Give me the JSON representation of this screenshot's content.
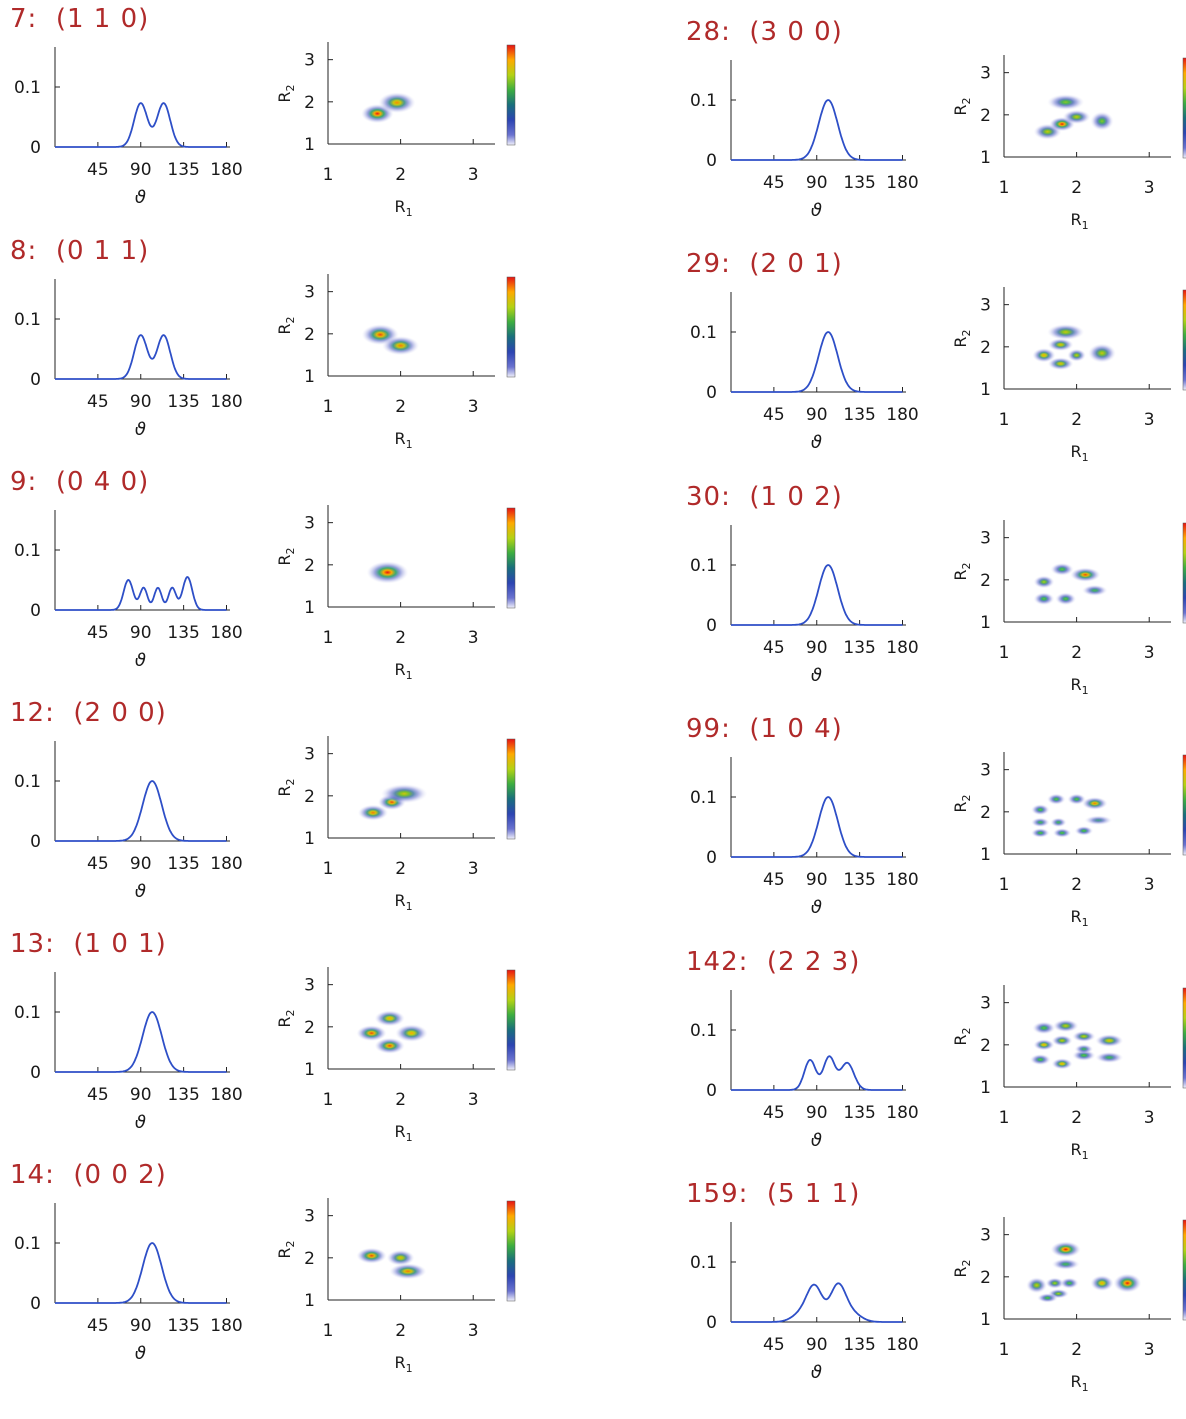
{
  "chart_data": [
    {
      "type": "line",
      "title": "7:  (1 1 0)",
      "xlabel": "ϑ",
      "xticks": [
        "45",
        "90",
        "135",
        "180"
      ],
      "yticks": [
        "0",
        "0.1"
      ],
      "peaks": [
        {
          "x": 90,
          "h": 0.073,
          "w": 7
        },
        {
          "x": 114,
          "h": 0.073,
          "w": 7
        }
      ],
      "map": {
        "xlabel": "R",
        "xlabel_sub": "1",
        "ylabel": "R",
        "ylabel_sub": "2",
        "xticks": [
          "1",
          "2",
          "3"
        ],
        "yticks": [
          "1",
          "2",
          "3"
        ],
        "blobs": [
          {
            "x": 1.68,
            "y": 1.72,
            "i": 1.0,
            "sx": 0.14,
            "sy": 0.12
          },
          {
            "x": 1.95,
            "y": 1.98,
            "i": 0.88,
            "sx": 0.16,
            "sy": 0.13
          }
        ]
      }
    },
    {
      "type": "line",
      "title": "8:  (0 1 1)",
      "xlabel": "ϑ",
      "xticks": [
        "45",
        "90",
        "135",
        "180"
      ],
      "yticks": [
        "0",
        "0.1"
      ],
      "peaks": [
        {
          "x": 90,
          "h": 0.073,
          "w": 7
        },
        {
          "x": 114,
          "h": 0.073,
          "w": 7
        }
      ],
      "map": {
        "xlabel": "R",
        "xlabel_sub": "1",
        "ylabel": "R",
        "ylabel_sub": "2",
        "xticks": [
          "1",
          "2",
          "3"
        ],
        "yticks": [
          "1",
          "2",
          "3"
        ],
        "blobs": [
          {
            "x": 1.72,
            "y": 1.98,
            "i": 0.95,
            "sx": 0.16,
            "sy": 0.13
          },
          {
            "x": 2.0,
            "y": 1.72,
            "i": 0.9,
            "sx": 0.16,
            "sy": 0.12
          }
        ]
      }
    },
    {
      "type": "line",
      "title": "9:  (0 4 0)",
      "xlabel": "ϑ",
      "xticks": [
        "45",
        "90",
        "135",
        "180"
      ],
      "yticks": [
        "0",
        "0.1"
      ],
      "peaks": [
        {
          "x": 77,
          "h": 0.05,
          "w": 5
        },
        {
          "x": 93,
          "h": 0.037,
          "w": 4
        },
        {
          "x": 108,
          "h": 0.037,
          "w": 4
        },
        {
          "x": 123,
          "h": 0.037,
          "w": 4
        },
        {
          "x": 139,
          "h": 0.055,
          "w": 5
        }
      ],
      "map": {
        "xlabel": "R",
        "xlabel_sub": "1",
        "ylabel": "R",
        "ylabel_sub": "2",
        "xticks": [
          "1",
          "2",
          "3"
        ],
        "yticks": [
          "1",
          "2",
          "3"
        ],
        "blobs": [
          {
            "x": 1.82,
            "y": 1.82,
            "i": 1.0,
            "sx": 0.18,
            "sy": 0.14
          }
        ]
      }
    },
    {
      "type": "line",
      "title": "12:  (2 0 0)",
      "xlabel": "ϑ",
      "xticks": [
        "45",
        "90",
        "135",
        "180"
      ],
      "yticks": [
        "0",
        "0.1"
      ],
      "peaks": [
        {
          "x": 102,
          "h": 0.1,
          "w": 10
        }
      ],
      "map": {
        "xlabel": "R",
        "xlabel_sub": "1",
        "ylabel": "R",
        "ylabel_sub": "2",
        "xticks": [
          "1",
          "2",
          "3"
        ],
        "yticks": [
          "1",
          "2",
          "3"
        ],
        "blobs": [
          {
            "x": 1.62,
            "y": 1.6,
            "i": 0.9,
            "sx": 0.13,
            "sy": 0.1
          },
          {
            "x": 1.88,
            "y": 1.85,
            "i": 0.95,
            "sx": 0.12,
            "sy": 0.1
          },
          {
            "x": 2.05,
            "y": 2.05,
            "i": 0.75,
            "sx": 0.2,
            "sy": 0.12
          }
        ]
      }
    },
    {
      "type": "line",
      "title": "13:  (1 0 1)",
      "xlabel": "ϑ",
      "xticks": [
        "45",
        "90",
        "135",
        "180"
      ],
      "yticks": [
        "0",
        "0.1"
      ],
      "peaks": [
        {
          "x": 102,
          "h": 0.1,
          "w": 10
        }
      ],
      "map": {
        "xlabel": "R",
        "xlabel_sub": "1",
        "ylabel": "R",
        "ylabel_sub": "2",
        "xticks": [
          "1",
          "2",
          "3"
        ],
        "yticks": [
          "1",
          "2",
          "3"
        ],
        "blobs": [
          {
            "x": 1.6,
            "y": 1.85,
            "i": 0.95,
            "sx": 0.13,
            "sy": 0.1
          },
          {
            "x": 1.85,
            "y": 2.2,
            "i": 0.85,
            "sx": 0.13,
            "sy": 0.1
          },
          {
            "x": 1.85,
            "y": 1.55,
            "i": 0.95,
            "sx": 0.13,
            "sy": 0.1
          },
          {
            "x": 2.15,
            "y": 1.85,
            "i": 0.85,
            "sx": 0.14,
            "sy": 0.11
          }
        ]
      }
    },
    {
      "type": "line",
      "title": "14:  (0 0 2)",
      "xlabel": "ϑ",
      "xticks": [
        "45",
        "90",
        "135",
        "180"
      ],
      "yticks": [
        "0",
        "0.1"
      ],
      "peaks": [
        {
          "x": 102,
          "h": 0.1,
          "w": 10
        }
      ],
      "map": {
        "xlabel": "R",
        "xlabel_sub": "1",
        "ylabel": "R",
        "ylabel_sub": "2",
        "xticks": [
          "1",
          "2",
          "3"
        ],
        "yticks": [
          "1",
          "2",
          "3"
        ],
        "blobs": [
          {
            "x": 1.6,
            "y": 2.05,
            "i": 0.95,
            "sx": 0.13,
            "sy": 0.1
          },
          {
            "x": 2.0,
            "y": 2.0,
            "i": 0.8,
            "sx": 0.12,
            "sy": 0.1
          },
          {
            "x": 2.1,
            "y": 1.68,
            "i": 0.9,
            "sx": 0.16,
            "sy": 0.1
          }
        ]
      }
    },
    {
      "type": "line",
      "title": "28:  (3 0 0)",
      "xlabel": "ϑ",
      "xticks": [
        "45",
        "90",
        "135",
        "180"
      ],
      "yticks": [
        "0",
        "0.1"
      ],
      "peaks": [
        {
          "x": 102,
          "h": 0.1,
          "w": 10
        }
      ],
      "map": {
        "xlabel": "R",
        "xlabel_sub": "1",
        "ylabel": "R",
        "ylabel_sub": "2",
        "xticks": [
          "1",
          "2",
          "3"
        ],
        "yticks": [
          "1",
          "2",
          "3"
        ],
        "blobs": [
          {
            "x": 1.6,
            "y": 1.6,
            "i": 0.75,
            "sx": 0.12,
            "sy": 0.1
          },
          {
            "x": 1.8,
            "y": 1.78,
            "i": 1.0,
            "sx": 0.11,
            "sy": 0.09
          },
          {
            "x": 2.0,
            "y": 1.95,
            "i": 0.75,
            "sx": 0.12,
            "sy": 0.09
          },
          {
            "x": 1.85,
            "y": 2.3,
            "i": 0.65,
            "sx": 0.16,
            "sy": 0.1
          },
          {
            "x": 2.35,
            "y": 1.85,
            "i": 0.65,
            "sx": 0.1,
            "sy": 0.12
          }
        ]
      }
    },
    {
      "type": "line",
      "title": "29:  (2 0 1)",
      "xlabel": "ϑ",
      "xticks": [
        "45",
        "90",
        "135",
        "180"
      ],
      "yticks": [
        "0",
        "0.1"
      ],
      "peaks": [
        {
          "x": 102,
          "h": 0.1,
          "w": 10
        }
      ],
      "map": {
        "xlabel": "R",
        "xlabel_sub": "1",
        "ylabel": "R",
        "ylabel_sub": "2",
        "xticks": [
          "1",
          "2",
          "3"
        ],
        "yticks": [
          "1",
          "2",
          "3"
        ],
        "blobs": [
          {
            "x": 1.55,
            "y": 1.8,
            "i": 0.85,
            "sx": 0.1,
            "sy": 0.09
          },
          {
            "x": 1.78,
            "y": 2.05,
            "i": 0.8,
            "sx": 0.11,
            "sy": 0.08
          },
          {
            "x": 1.78,
            "y": 1.6,
            "i": 0.8,
            "sx": 0.11,
            "sy": 0.08
          },
          {
            "x": 2.0,
            "y": 1.8,
            "i": 0.75,
            "sx": 0.08,
            "sy": 0.08
          },
          {
            "x": 1.85,
            "y": 2.35,
            "i": 0.75,
            "sx": 0.16,
            "sy": 0.1
          },
          {
            "x": 2.35,
            "y": 1.85,
            "i": 0.75,
            "sx": 0.12,
            "sy": 0.12
          }
        ]
      }
    },
    {
      "type": "line",
      "title": "30:  (1 0 2)",
      "xlabel": "ϑ",
      "xticks": [
        "45",
        "90",
        "135",
        "180"
      ],
      "yticks": [
        "0",
        "0.1"
      ],
      "peaks": [
        {
          "x": 102,
          "h": 0.1,
          "w": 10
        }
      ],
      "map": {
        "xlabel": "R",
        "xlabel_sub": "1",
        "ylabel": "R",
        "ylabel_sub": "2",
        "xticks": [
          "1",
          "2",
          "3"
        ],
        "yticks": [
          "1",
          "2",
          "3"
        ],
        "blobs": [
          {
            "x": 1.55,
            "y": 1.95,
            "i": 0.7,
            "sx": 0.09,
            "sy": 0.08
          },
          {
            "x": 1.8,
            "y": 2.25,
            "i": 0.6,
            "sx": 0.1,
            "sy": 0.08
          },
          {
            "x": 2.12,
            "y": 2.12,
            "i": 0.95,
            "sx": 0.13,
            "sy": 0.09
          },
          {
            "x": 1.55,
            "y": 1.55,
            "i": 0.6,
            "sx": 0.09,
            "sy": 0.08
          },
          {
            "x": 1.85,
            "y": 1.55,
            "i": 0.6,
            "sx": 0.09,
            "sy": 0.08
          },
          {
            "x": 2.25,
            "y": 1.75,
            "i": 0.55,
            "sx": 0.11,
            "sy": 0.07
          }
        ]
      }
    },
    {
      "type": "line",
      "title": "99:  (1 0 4)",
      "xlabel": "ϑ",
      "xticks": [
        "45",
        "90",
        "135",
        "180"
      ],
      "yticks": [
        "0",
        "0.1"
      ],
      "peaks": [
        {
          "x": 102,
          "h": 0.1,
          "w": 10
        }
      ],
      "map": {
        "xlabel": "R",
        "xlabel_sub": "1",
        "ylabel": "R",
        "ylabel_sub": "2",
        "xticks": [
          "1",
          "2",
          "3"
        ],
        "yticks": [
          "1",
          "2",
          "3"
        ],
        "blobs": [
          {
            "x": 1.5,
            "y": 2.05,
            "i": 0.6,
            "sx": 0.08,
            "sy": 0.07
          },
          {
            "x": 1.72,
            "y": 2.3,
            "i": 0.6,
            "sx": 0.08,
            "sy": 0.07
          },
          {
            "x": 2.0,
            "y": 2.3,
            "i": 0.6,
            "sx": 0.08,
            "sy": 0.07
          },
          {
            "x": 2.25,
            "y": 2.2,
            "i": 0.9,
            "sx": 0.11,
            "sy": 0.08
          },
          {
            "x": 1.5,
            "y": 1.75,
            "i": 0.55,
            "sx": 0.08,
            "sy": 0.06
          },
          {
            "x": 1.75,
            "y": 1.75,
            "i": 0.55,
            "sx": 0.07,
            "sy": 0.06
          },
          {
            "x": 1.5,
            "y": 1.5,
            "i": 0.6,
            "sx": 0.08,
            "sy": 0.06
          },
          {
            "x": 1.8,
            "y": 1.5,
            "i": 0.6,
            "sx": 0.08,
            "sy": 0.06
          },
          {
            "x": 2.1,
            "y": 1.55,
            "i": 0.6,
            "sx": 0.08,
            "sy": 0.06
          },
          {
            "x": 2.3,
            "y": 1.8,
            "i": 0.45,
            "sx": 0.12,
            "sy": 0.06
          }
        ]
      }
    },
    {
      "type": "line",
      "title": "142:  (2 2 3)",
      "xlabel": "ϑ",
      "xticks": [
        "45",
        "90",
        "135",
        "180"
      ],
      "yticks": [
        "0",
        "0.1"
      ],
      "peaks": [
        {
          "x": 83,
          "h": 0.05,
          "w": 6
        },
        {
          "x": 103,
          "h": 0.055,
          "w": 6
        },
        {
          "x": 122,
          "h": 0.045,
          "w": 7
        }
      ],
      "map": {
        "xlabel": "R",
        "xlabel_sub": "1",
        "ylabel": "R",
        "ylabel_sub": "2",
        "xticks": [
          "1",
          "2",
          "3"
        ],
        "yticks": [
          "1",
          "2",
          "3"
        ],
        "blobs": [
          {
            "x": 1.55,
            "y": 2.4,
            "i": 0.6,
            "sx": 0.1,
            "sy": 0.08
          },
          {
            "x": 1.85,
            "y": 2.45,
            "i": 0.75,
            "sx": 0.11,
            "sy": 0.08
          },
          {
            "x": 1.55,
            "y": 2.0,
            "i": 0.85,
            "sx": 0.09,
            "sy": 0.07
          },
          {
            "x": 1.8,
            "y": 2.1,
            "i": 0.75,
            "sx": 0.09,
            "sy": 0.07
          },
          {
            "x": 2.1,
            "y": 2.2,
            "i": 0.75,
            "sx": 0.1,
            "sy": 0.07
          },
          {
            "x": 2.45,
            "y": 2.1,
            "i": 0.8,
            "sx": 0.12,
            "sy": 0.08
          },
          {
            "x": 1.5,
            "y": 1.65,
            "i": 0.6,
            "sx": 0.09,
            "sy": 0.07
          },
          {
            "x": 1.8,
            "y": 1.55,
            "i": 0.85,
            "sx": 0.09,
            "sy": 0.07
          },
          {
            "x": 2.1,
            "y": 1.75,
            "i": 0.6,
            "sx": 0.1,
            "sy": 0.07
          },
          {
            "x": 2.45,
            "y": 1.7,
            "i": 0.55,
            "sx": 0.12,
            "sy": 0.07
          },
          {
            "x": 2.1,
            "y": 1.9,
            "i": 0.55,
            "sx": 0.08,
            "sy": 0.06
          }
        ]
      }
    },
    {
      "type": "line",
      "title": "159:  (5 1 1)",
      "xlabel": "ϑ",
      "xticks": [
        "45",
        "90",
        "135",
        "180"
      ],
      "yticks": [
        "0",
        "0.1"
      ],
      "peaks": [
        {
          "x": 88,
          "h": 0.055,
          "w": 8
        },
        {
          "x": 112,
          "h": 0.058,
          "w": 8
        },
        {
          "x": 75,
          "h": 0.015,
          "w": 10
        },
        {
          "x": 126,
          "h": 0.015,
          "w": 10
        }
      ],
      "map": {
        "xlabel": "R",
        "xlabel_sub": "1",
        "ylabel": "R",
        "ylabel_sub": "2",
        "xticks": [
          "1",
          "2",
          "3"
        ],
        "yticks": [
          "1",
          "2",
          "3"
        ],
        "blobs": [
          {
            "x": 1.85,
            "y": 2.65,
            "i": 1.0,
            "sx": 0.13,
            "sy": 0.1
          },
          {
            "x": 1.85,
            "y": 2.3,
            "i": 0.55,
            "sx": 0.12,
            "sy": 0.07
          },
          {
            "x": 1.45,
            "y": 1.8,
            "i": 0.75,
            "sx": 0.09,
            "sy": 0.1
          },
          {
            "x": 1.7,
            "y": 1.85,
            "i": 0.7,
            "sx": 0.08,
            "sy": 0.07
          },
          {
            "x": 1.9,
            "y": 1.85,
            "i": 0.6,
            "sx": 0.08,
            "sy": 0.07
          },
          {
            "x": 1.75,
            "y": 1.6,
            "i": 0.7,
            "sx": 0.09,
            "sy": 0.06
          },
          {
            "x": 1.6,
            "y": 1.5,
            "i": 0.6,
            "sx": 0.09,
            "sy": 0.06
          },
          {
            "x": 2.35,
            "y": 1.85,
            "i": 0.85,
            "sx": 0.1,
            "sy": 0.1
          },
          {
            "x": 2.7,
            "y": 1.85,
            "i": 1.0,
            "sx": 0.12,
            "sy": 0.12
          }
        ]
      }
    }
  ]
}
